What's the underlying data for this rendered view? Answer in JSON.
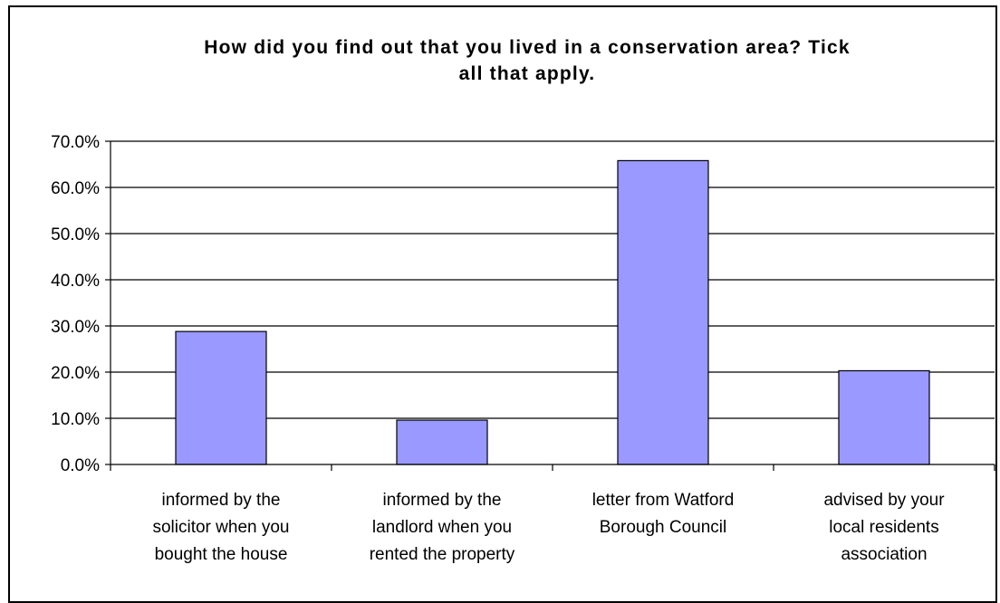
{
  "chart_data": {
    "type": "bar",
    "title": "How did you find out that you lived in a conservation area? Tick\nall that apply.",
    "xlabel": "",
    "ylabel": "",
    "categories": [
      "informed by the solicitor when you bought the house",
      "informed by the landlord when you rented the property",
      "letter from Watford Borough Council",
      "advised by your local residents association"
    ],
    "category_lines": [
      [
        "informed by the",
        "solicitor when you",
        "bought the house"
      ],
      [
        "informed by the",
        "landlord when you",
        "rented the property"
      ],
      [
        "letter from Watford",
        "Borough Council"
      ],
      [
        "advised by your",
        "local residents",
        "association"
      ]
    ],
    "values": [
      28.8,
      9.6,
      65.8,
      20.3
    ],
    "ylim": [
      0,
      70
    ],
    "yticks": [
      "0.0%",
      "10.0%",
      "20.0%",
      "30.0%",
      "40.0%",
      "50.0%",
      "60.0%",
      "70.0%"
    ],
    "grid": true,
    "legend": "none",
    "colors": {
      "bar_fill": "#9999FF",
      "bar_stroke": "#000000",
      "grid": "#000000"
    }
  }
}
